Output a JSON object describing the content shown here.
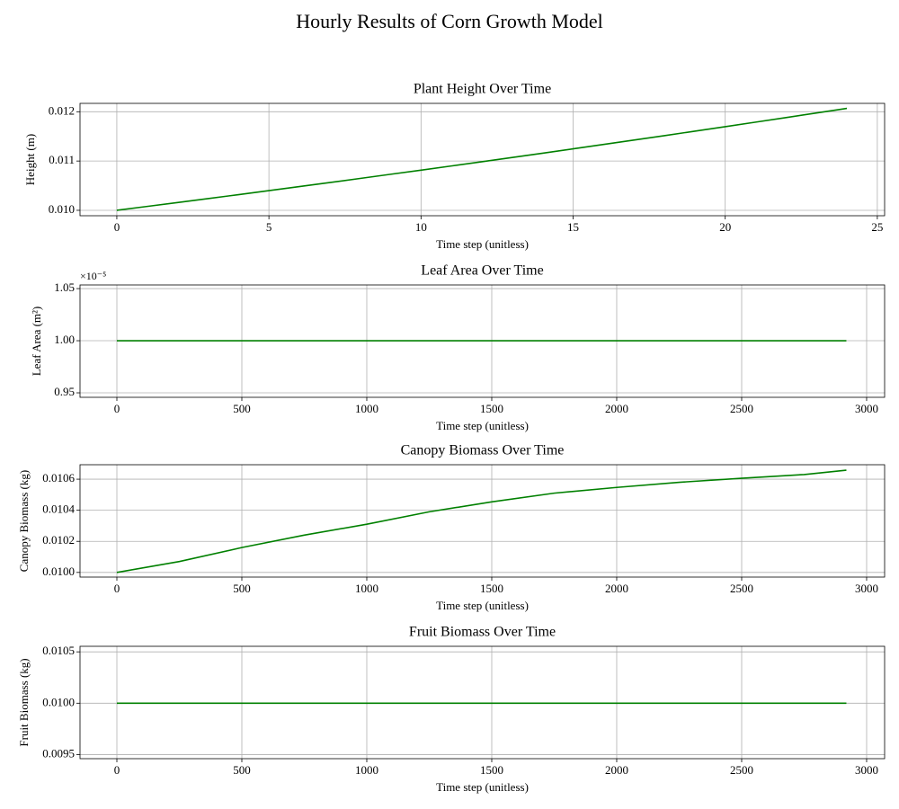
{
  "title": "Hourly Results of Corn Growth Model",
  "chart_data": [
    {
      "type": "line",
      "title": "Plant Height Over Time",
      "xlabel": "Time step (unitless)",
      "ylabel": "Height (m)",
      "x": [
        0,
        1,
        2,
        3,
        4,
        5,
        6,
        7,
        8,
        9,
        10,
        11,
        12,
        13,
        14,
        15,
        16,
        17,
        18,
        19,
        20,
        21,
        22,
        23,
        24
      ],
      "values": [
        0.01,
        0.010079,
        0.010158,
        0.010238,
        0.010318,
        0.010399,
        0.010481,
        0.010564,
        0.010647,
        0.010731,
        0.010815,
        0.0109,
        0.010986,
        0.011072,
        0.011159,
        0.011247,
        0.011336,
        0.011425,
        0.011515,
        0.011606,
        0.011697,
        0.011789,
        0.011882,
        0.011975,
        0.012069
      ],
      "color": "#008000",
      "grid": true,
      "xlim": [
        -1.21,
        25.24
      ],
      "xticks": [
        0,
        5,
        10,
        15,
        20,
        25
      ],
      "ylim": [
        0.00989,
        0.01217
      ],
      "yticks": [
        {
          "value": 0.01,
          "label": "0.010"
        },
        0.011,
        0.012
      ]
    },
    {
      "type": "line",
      "title": "Leaf Area Over Time",
      "xlabel": "Time step (unitless)",
      "ylabel": "Leaf Area (m²)",
      "offset_label": "×10⁻⁵",
      "x": [
        0,
        2919
      ],
      "values": [
        1.0,
        1.0
      ],
      "color": "#008000",
      "grid": true,
      "xlim": [
        -147.5,
        3072
      ],
      "xticks": [
        0,
        500,
        1000,
        1500,
        2000,
        2500,
        3000
      ],
      "ylim": [
        0.9457,
        1.0535
      ],
      "yticks": [
        0.95,
        {
          "value": 1.0,
          "label": "1.00"
        },
        1.05
      ]
    },
    {
      "type": "line",
      "title": "Canopy Biomass Over Time",
      "xlabel": "Time step (unitless)",
      "ylabel": "Canopy Biomass (kg)",
      "x": [
        0,
        250,
        500,
        750,
        1000,
        1250,
        1500,
        1750,
        2000,
        2250,
        2500,
        2750,
        2919
      ],
      "values": [
        0.01,
        0.01007,
        0.01016,
        0.01024,
        0.01031,
        0.01039,
        0.010454,
        0.01051,
        0.010547,
        0.01058,
        0.010606,
        0.01063,
        0.010658
      ],
      "color": "#008000",
      "grid": true,
      "xlim": [
        -147.5,
        3072
      ],
      "xticks": [
        0,
        500,
        1000,
        1500,
        2000,
        2500,
        3000
      ],
      "ylim": [
        0.00997,
        0.010693
      ],
      "yticks": [
        {
          "value": 0.01,
          "label": "0.0100"
        },
        0.0102,
        0.0104,
        0.0106
      ]
    },
    {
      "type": "line",
      "title": "Fruit Biomass Over Time",
      "xlabel": "Time step (unitless)",
      "ylabel": "Fruit Biomass (kg)",
      "x": [
        0,
        2919
      ],
      "values": [
        0.01,
        0.01
      ],
      "color": "#008000",
      "grid": true,
      "xlim": [
        -147.5,
        3072
      ],
      "xticks": [
        0,
        500,
        1000,
        1500,
        2000,
        2500,
        3000
      ],
      "ylim": [
        0.00946,
        0.010554
      ],
      "yticks": [
        0.0095,
        {
          "value": 0.01,
          "label": "0.0100"
        },
        0.0105
      ]
    }
  ]
}
